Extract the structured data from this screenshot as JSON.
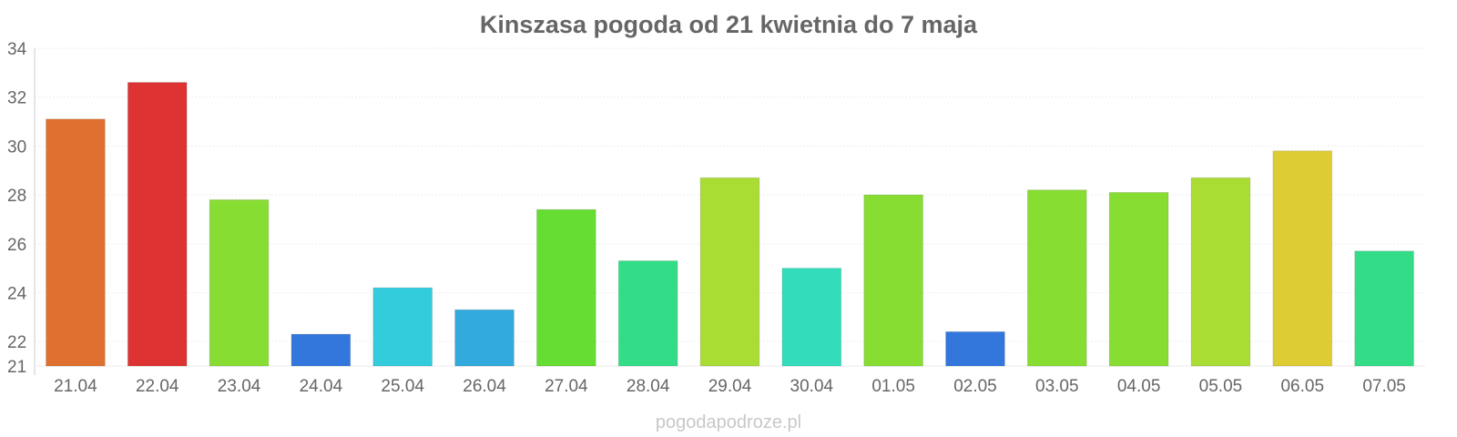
{
  "chart_data": {
    "type": "bar",
    "title": "Kinszasa pogoda od 21 kwietnia do 7 maja",
    "xlabel": "",
    "ylabel": "",
    "ylim": [
      21,
      34
    ],
    "yticks": [
      21,
      22,
      24,
      26,
      28,
      30,
      32,
      34
    ],
    "grid": true,
    "categories": [
      "21.04",
      "22.04",
      "23.04",
      "24.04",
      "25.04",
      "26.04",
      "27.04",
      "28.04",
      "29.04",
      "30.04",
      "01.05",
      "02.05",
      "03.05",
      "04.05",
      "05.05",
      "06.05",
      "07.05"
    ],
    "values": [
      31.1,
      32.6,
      27.8,
      22.3,
      24.2,
      23.3,
      27.4,
      25.3,
      28.7,
      25.0,
      28.0,
      22.4,
      28.2,
      28.1,
      28.7,
      29.8,
      25.7
    ],
    "colors": [
      "#e07030",
      "#dd3333",
      "#88dd33",
      "#3377dd",
      "#33ccdd",
      "#33aadd",
      "#66dd33",
      "#33dd88",
      "#aadd33",
      "#33ddbb",
      "#88dd33",
      "#3377dd",
      "#88dd33",
      "#88dd33",
      "#aadd33",
      "#ddcc33",
      "#33dd88"
    ]
  },
  "watermark": "pogodapodroze.pl"
}
